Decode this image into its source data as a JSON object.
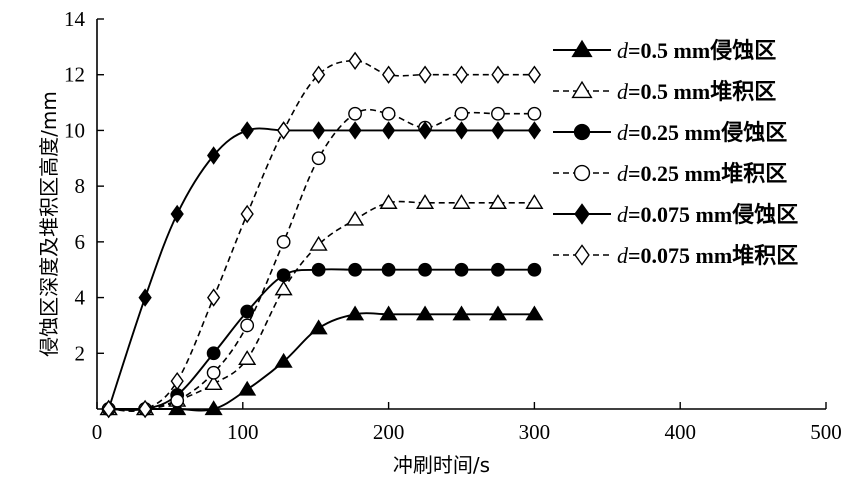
{
  "chart_data": {
    "type": "line",
    "title": "",
    "xlabel": "冲刷时间/s",
    "ylabel": "侵蚀区深度及堆积区高度/mm",
    "xlim": [
      0,
      500
    ],
    "ylim": [
      0,
      14
    ],
    "xticks": [
      0,
      100,
      200,
      300,
      400,
      500
    ],
    "yticks": [
      2,
      4,
      6,
      8,
      10,
      12,
      14
    ],
    "grid": false,
    "legend_position": "right",
    "series": [
      {
        "name": "d=0.5 mm侵蚀区",
        "label_var": "d",
        "label_rest": "=0.5 mm",
        "label_cjk": "侵蚀区",
        "marker": "triangle",
        "fill": "filled",
        "dash": "solid",
        "x": [
          8,
          33,
          55,
          80,
          103,
          128,
          152,
          177,
          200,
          225,
          250,
          275,
          300
        ],
        "y": [
          0,
          0,
          0,
          0,
          0.7,
          1.7,
          2.9,
          3.4,
          3.4,
          3.4,
          3.4,
          3.4,
          3.4
        ]
      },
      {
        "name": "d=0.5 mm堆积区",
        "label_var": "d",
        "label_rest": "=0.5 mm",
        "label_cjk": "堆积区",
        "marker": "triangle",
        "fill": "open",
        "dash": "dashed",
        "x": [
          8,
          33,
          55,
          80,
          103,
          128,
          152,
          177,
          200,
          225,
          250,
          275,
          300
        ],
        "y": [
          0,
          0,
          0.3,
          0.9,
          1.8,
          4.3,
          5.9,
          6.8,
          7.4,
          7.4,
          7.4,
          7.4,
          7.4
        ]
      },
      {
        "name": "d=0.25 mm侵蚀区",
        "label_var": "d",
        "label_rest": "=0.25 mm",
        "label_cjk": "侵蚀区",
        "marker": "circle",
        "fill": "filled",
        "dash": "solid",
        "x": [
          8,
          33,
          55,
          80,
          103,
          128,
          152,
          177,
          200,
          225,
          250,
          275,
          300
        ],
        "y": [
          0,
          0,
          0.5,
          2.0,
          3.5,
          4.8,
          5.0,
          5.0,
          5.0,
          5.0,
          5.0,
          5.0,
          5.0
        ]
      },
      {
        "name": "d=0.25 mm堆积区",
        "label_var": "d",
        "label_rest": "=0.25 mm",
        "label_cjk": "堆积区",
        "marker": "circle",
        "fill": "open",
        "dash": "dashed",
        "x": [
          8,
          33,
          55,
          80,
          103,
          128,
          152,
          177,
          200,
          225,
          250,
          275,
          300
        ],
        "y": [
          0,
          0,
          0.3,
          1.3,
          3.0,
          6.0,
          9.0,
          10.6,
          10.6,
          10.1,
          10.6,
          10.6,
          10.6
        ]
      },
      {
        "name": "d=0.075 mm侵蚀区",
        "label_var": "d",
        "label_rest": "=0.075 mm",
        "label_cjk": "侵蚀区",
        "marker": "diamond",
        "fill": "filled",
        "dash": "solid",
        "x": [
          8,
          33,
          55,
          80,
          103,
          128,
          152,
          177,
          200,
          225,
          250,
          275,
          300
        ],
        "y": [
          0,
          4.0,
          7.0,
          9.1,
          10.0,
          10.0,
          10.0,
          10.0,
          10.0,
          10.0,
          10.0,
          10.0,
          10.0
        ]
      },
      {
        "name": "d=0.075 mm堆积区",
        "label_var": "d",
        "label_rest": "=0.075 mm",
        "label_cjk": "堆积区",
        "marker": "diamond",
        "fill": "open",
        "dash": "dashed",
        "x": [
          8,
          33,
          55,
          80,
          103,
          128,
          152,
          177,
          200,
          225,
          250,
          275,
          300
        ],
        "y": [
          0,
          0,
          1.0,
          4.0,
          7.0,
          10.0,
          12.0,
          12.5,
          12.0,
          12.0,
          12.0,
          12.0,
          12.0
        ]
      }
    ]
  }
}
